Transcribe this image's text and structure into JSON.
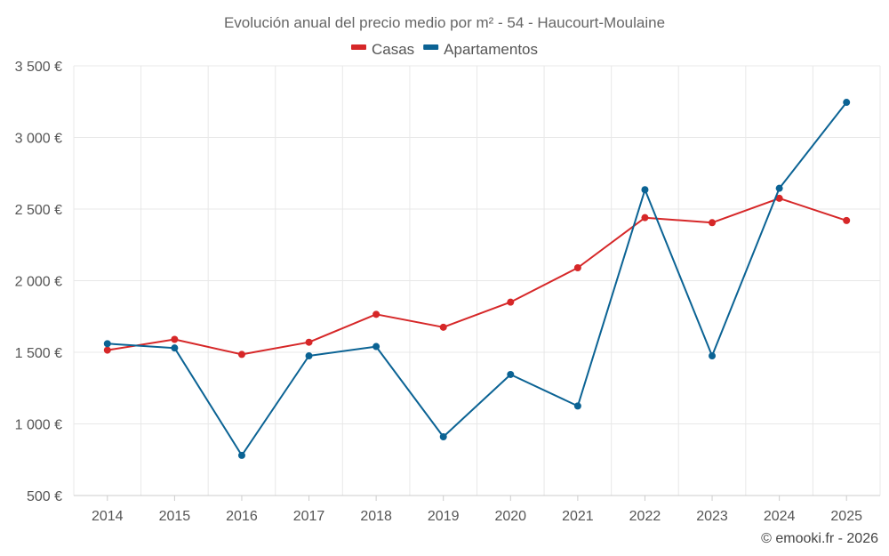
{
  "chart_data": {
    "type": "line",
    "title": "Evolución anual del precio medio por m² - 54 - Haucourt-Moulaine",
    "categories": [
      "2014",
      "2015",
      "2016",
      "2017",
      "2018",
      "2019",
      "2020",
      "2021",
      "2022",
      "2023",
      "2024",
      "2025"
    ],
    "series": [
      {
        "name": "Casas",
        "color": "#d62728",
        "values": [
          1515,
          1590,
          1485,
          1570,
          1765,
          1675,
          1850,
          2090,
          2440,
          2405,
          2575,
          2420
        ]
      },
      {
        "name": "Apartamentos",
        "color": "#0b6394",
        "values": [
          1560,
          1530,
          780,
          1475,
          1540,
          910,
          1345,
          1125,
          2635,
          1475,
          2645,
          3245
        ]
      }
    ],
    "ylim": [
      500,
      3500
    ],
    "yticks": [
      500,
      1000,
      1500,
      2000,
      2500,
      3000,
      3500
    ],
    "ytick_labels": [
      "500 €",
      "1 000 €",
      "1 500 €",
      "2 000 €",
      "2 500 €",
      "3 000 €",
      "3 500 €"
    ],
    "xlabel": "",
    "ylabel": "",
    "grid": true,
    "legend_position": "top-center"
  },
  "credit": "© emooki.fr - 2026"
}
